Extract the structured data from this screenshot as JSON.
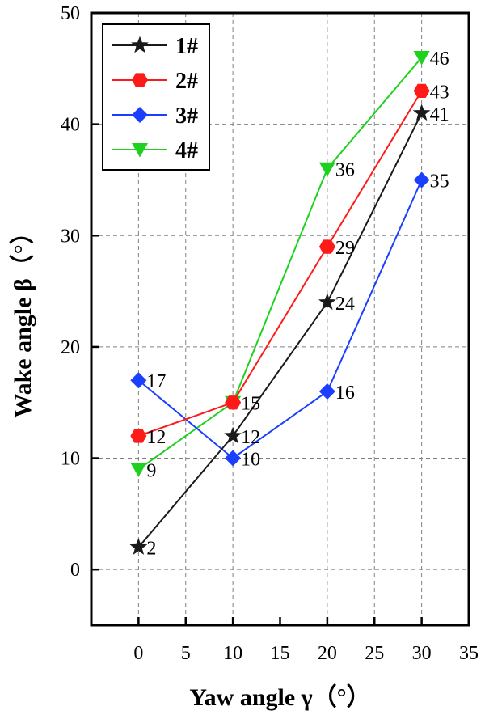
{
  "chart_data": {
    "type": "line",
    "xlabel": "Yaw angle γ（°）",
    "ylabel": "Wake angle β（°）",
    "x": [
      0,
      10,
      20,
      30
    ],
    "xlim": [
      -5,
      35
    ],
    "ylim": [
      -5,
      50
    ],
    "xticks": [
      0,
      5,
      10,
      15,
      20,
      25,
      30,
      35
    ],
    "yticks": [
      0,
      10,
      20,
      30,
      40,
      50
    ],
    "grid": true,
    "grid_style": "dashed",
    "legend_position": "top-left",
    "series": [
      {
        "name": "1#",
        "marker": "star",
        "color": "#1a1a1a",
        "values": [
          2,
          12,
          24,
          41
        ],
        "labels": [
          "2",
          "12",
          "24",
          "41"
        ]
      },
      {
        "name": "2#",
        "marker": "hexagon",
        "color": "#ff1a1a",
        "values": [
          12,
          15,
          29,
          43
        ],
        "labels": [
          "12",
          "",
          "29",
          "43"
        ]
      },
      {
        "name": "3#",
        "marker": "diamond",
        "color": "#1a3fff",
        "values": [
          17,
          10,
          16,
          35
        ],
        "labels": [
          "17",
          "10",
          "16",
          "35"
        ]
      },
      {
        "name": "4#",
        "marker": "triangle-down",
        "color": "#1fd11f",
        "values": [
          9,
          15,
          36,
          46
        ],
        "labels": [
          "9",
          "15",
          "36",
          "46"
        ]
      }
    ]
  }
}
